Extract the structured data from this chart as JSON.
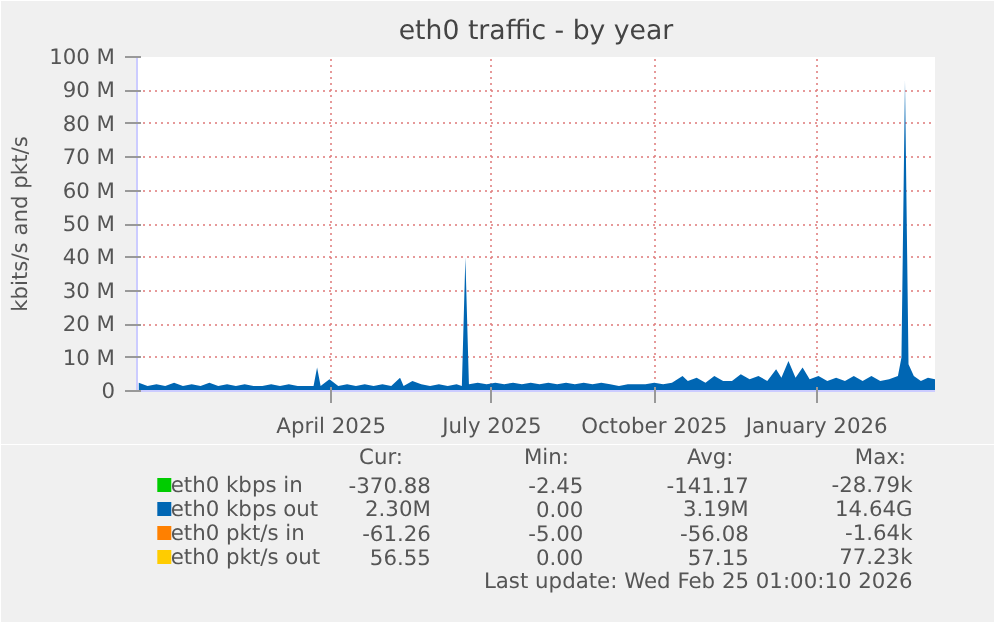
{
  "chart_data": {
    "type": "area",
    "title": "eth0 traffic - by year",
    "ylabel": "kbits/s and pkt/s",
    "x": [
      "2024-12-13",
      "2024-12-18",
      "2024-12-23",
      "2024-12-28",
      "2025-01-02",
      "2025-01-07",
      "2025-01-12",
      "2025-01-17",
      "2025-01-22",
      "2025-01-27",
      "2025-02-01",
      "2025-02-06",
      "2025-02-11",
      "2025-02-16",
      "2025-02-21",
      "2025-02-26",
      "2025-03-03",
      "2025-03-08",
      "2025-03-13",
      "2025-03-18",
      "2025-03-22",
      "2025-03-24",
      "2025-03-26",
      "2025-03-31",
      "2025-04-05",
      "2025-04-10",
      "2025-04-15",
      "2025-04-20",
      "2025-04-25",
      "2025-04-30",
      "2025-05-05",
      "2025-05-10",
      "2025-05-12",
      "2025-05-17",
      "2025-05-22",
      "2025-05-27",
      "2025-06-01",
      "2025-06-06",
      "2025-06-11",
      "2025-06-14",
      "2025-06-16",
      "2025-06-18",
      "2025-06-23",
      "2025-06-28",
      "2025-07-03",
      "2025-07-08",
      "2025-07-13",
      "2025-07-18",
      "2025-07-23",
      "2025-07-28",
      "2025-08-02",
      "2025-08-07",
      "2025-08-12",
      "2025-08-17",
      "2025-08-22",
      "2025-08-27",
      "2025-09-01",
      "2025-09-06",
      "2025-09-11",
      "2025-09-16",
      "2025-09-21",
      "2025-09-26",
      "2025-10-01",
      "2025-10-06",
      "2025-10-11",
      "2025-10-17",
      "2025-10-20",
      "2025-10-25",
      "2025-10-30",
      "2025-11-04",
      "2025-11-09",
      "2025-11-14",
      "2025-11-19",
      "2025-11-24",
      "2025-11-29",
      "2025-12-04",
      "2025-12-09",
      "2025-12-12",
      "2025-12-16",
      "2025-12-20",
      "2025-12-24",
      "2025-12-28",
      "2026-01-02",
      "2026-01-07",
      "2026-01-12",
      "2026-01-17",
      "2026-01-22",
      "2026-01-27",
      "2026-02-01",
      "2026-02-06",
      "2026-02-11",
      "2026-02-16",
      "2026-02-18",
      "2026-02-20",
      "2026-02-22",
      "2026-02-25",
      "2026-03-01",
      "2026-03-05",
      "2026-03-09"
    ],
    "series": [
      {
        "name": "eth0 kbps in",
        "color": "#00cc00",
        "values": [
          null,
          null,
          null,
          null,
          null,
          null,
          null,
          null,
          null,
          null,
          null,
          null,
          null,
          null,
          null,
          null,
          null,
          null,
          null,
          null,
          null,
          null,
          null,
          null,
          null,
          null,
          null,
          null,
          null,
          null,
          null,
          null,
          null,
          null,
          null,
          null,
          null,
          null,
          null,
          null,
          null,
          null,
          null,
          null,
          null,
          null,
          null,
          null,
          null,
          null,
          null,
          null,
          null,
          null,
          null,
          null,
          null,
          null,
          null,
          null,
          null,
          null,
          null,
          null,
          null,
          null,
          null,
          null,
          null,
          null,
          null,
          null,
          null,
          null,
          null,
          null,
          null,
          null,
          null,
          null,
          null,
          null,
          null,
          null,
          null,
          null,
          null,
          null,
          null,
          null,
          null,
          null,
          null,
          null,
          null,
          null,
          null,
          null,
          null
        ]
      },
      {
        "name": "eth0 kbps out",
        "color": "#0066b3",
        "values": [
          2.5,
          1.5,
          2.0,
          1.5,
          2.5,
          1.5,
          2.0,
          1.5,
          2.5,
          1.5,
          2.0,
          1.5,
          2.0,
          1.5,
          1.5,
          2.0,
          1.5,
          2.0,
          1.5,
          1.5,
          1.5,
          7.0,
          1.5,
          3.5,
          1.5,
          2.0,
          1.5,
          2.0,
          1.5,
          2.0,
          1.5,
          4.0,
          1.5,
          3.0,
          2.0,
          1.5,
          2.0,
          1.5,
          2.0,
          1.5,
          40,
          2.0,
          2.5,
          2.0,
          2.5,
          2.0,
          2.5,
          2.0,
          2.5,
          2.0,
          2.5,
          2.0,
          2.5,
          2.0,
          2.5,
          2.0,
          2.5,
          2.0,
          1.5,
          2.0,
          2.0,
          2.0,
          2.5,
          2.0,
          2.5,
          4.5,
          3.0,
          4.0,
          2.5,
          4.5,
          3.0,
          3.0,
          5.0,
          3.5,
          4.5,
          3.0,
          6.5,
          4.0,
          9.0,
          4.0,
          7.0,
          3.5,
          4.5,
          3.0,
          4.0,
          3.0,
          4.5,
          3.0,
          4.5,
          3.0,
          3.5,
          4.5,
          10,
          93,
          8,
          4.5,
          3.0,
          4.0,
          3.5
        ]
      },
      {
        "name": "eth0 pkt/s in",
        "color": "#ff8000",
        "values": [
          null,
          null,
          null,
          null,
          null,
          null,
          null,
          null,
          null,
          null,
          null,
          null,
          null,
          null,
          null,
          null,
          null,
          null,
          null,
          null,
          null,
          null,
          null,
          null,
          null,
          null,
          null,
          null,
          null,
          null,
          null,
          null,
          null,
          null,
          null,
          null,
          null,
          null,
          null,
          null,
          null,
          null,
          null,
          null,
          null,
          null,
          null,
          null,
          null,
          null,
          null,
          null,
          null,
          null,
          null,
          null,
          null,
          null,
          null,
          null,
          null,
          null,
          null,
          null,
          null,
          null,
          null,
          null,
          null,
          null,
          null,
          null,
          null,
          null,
          null,
          null,
          null,
          null,
          null,
          null,
          null,
          null,
          null,
          null,
          null,
          null,
          null,
          null,
          null,
          null,
          null,
          null,
          null,
          null,
          null,
          null,
          null,
          null,
          null
        ]
      },
      {
        "name": "eth0 pkt/s out",
        "color": "#ffcc00",
        "values": [
          null,
          null,
          null,
          null,
          null,
          null,
          null,
          null,
          null,
          null,
          null,
          null,
          null,
          null,
          null,
          null,
          null,
          null,
          null,
          null,
          null,
          null,
          null,
          null,
          null,
          null,
          null,
          null,
          null,
          null,
          null,
          null,
          null,
          null,
          null,
          null,
          null,
          null,
          null,
          null,
          null,
          null,
          null,
          null,
          null,
          null,
          null,
          null,
          null,
          null,
          null,
          null,
          null,
          null,
          null,
          null,
          null,
          null,
          null,
          null,
          null,
          null,
          null,
          null,
          null,
          null,
          null,
          null,
          null,
          null,
          null,
          null,
          null,
          null,
          null,
          null,
          null,
          null,
          null,
          null,
          null,
          null,
          null,
          null,
          null,
          null,
          null,
          null,
          null,
          null,
          null,
          null,
          null,
          null,
          null,
          null,
          null,
          null,
          null
        ]
      }
    ],
    "xlim": [
      "2024-12-12",
      "2026-03-09"
    ],
    "xticks": [
      {
        "value": "2025-04-01",
        "label": "April 2025"
      },
      {
        "value": "2025-07-01",
        "label": "July 2025"
      },
      {
        "value": "2025-10-01",
        "label": "October 2025"
      },
      {
        "value": "2026-01-01",
        "label": "January 2026"
      }
    ],
    "ylim": [
      0,
      100
    ],
    "yticks": [
      {
        "value": 0,
        "label": "0"
      },
      {
        "value": 10,
        "label": "10 M"
      },
      {
        "value": 20,
        "label": "20 M"
      },
      {
        "value": 30,
        "label": "30 M"
      },
      {
        "value": 40,
        "label": "40 M"
      },
      {
        "value": 50,
        "label": "50 M"
      },
      {
        "value": 60,
        "label": "60 M"
      },
      {
        "value": 70,
        "label": "70 M"
      },
      {
        "value": 80,
        "label": "80 M"
      },
      {
        "value": 90,
        "label": "90 M"
      },
      {
        "value": 100,
        "label": "100 M"
      }
    ],
    "grid": true,
    "legend": "bottom",
    "annotations": [
      "Cur:",
      "Min:",
      "Avg:",
      "Max:",
      "-370.88",
      "-2.45",
      "-141.17",
      "-28.79k",
      "2.30M",
      "0.00",
      "3.19M",
      "14.64G",
      "-61.26",
      "-5.00",
      "-56.08",
      "-1.64k",
      "56.55",
      "0.00",
      "57.15",
      "77.23k",
      "Last update: Wed Feb 25 01:00:10 2026"
    ]
  }
}
